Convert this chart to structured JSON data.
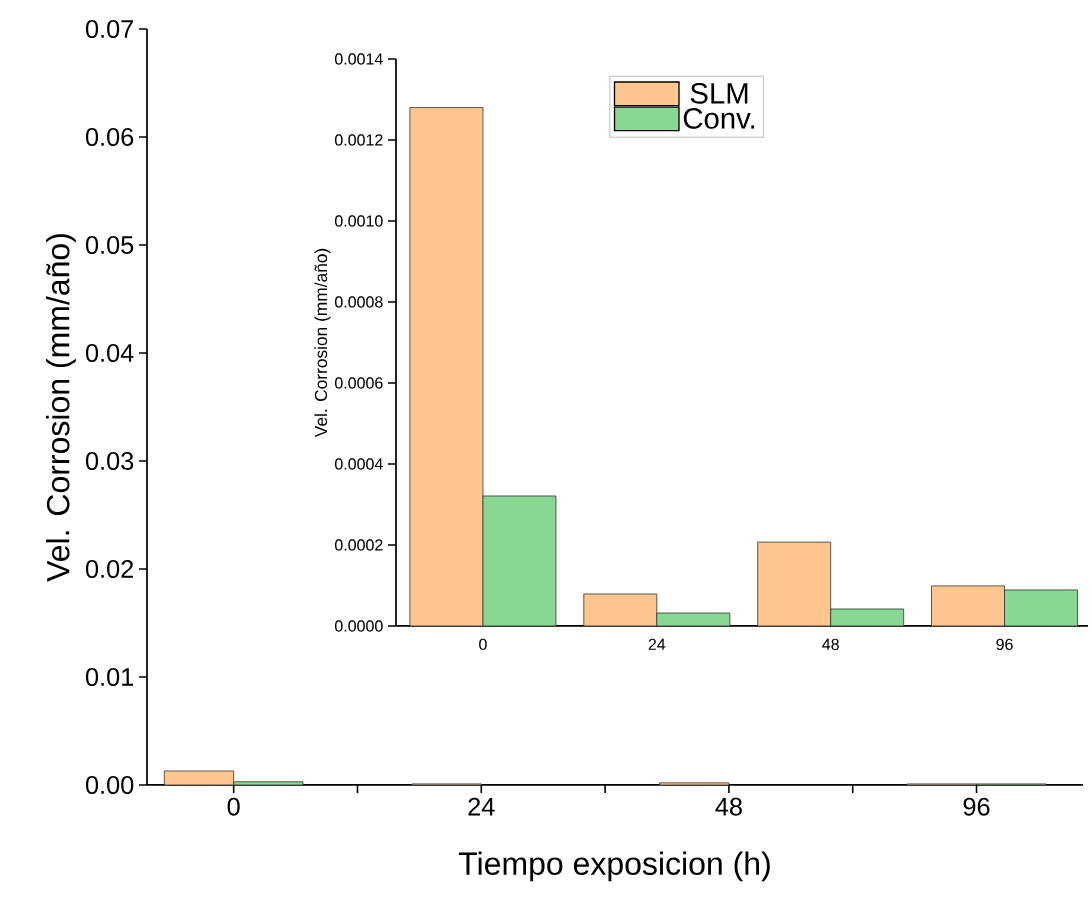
{
  "chart_data": [
    {
      "type": "bar",
      "categories": [
        "0",
        "24",
        "48",
        "96"
      ],
      "xlabel": "Tiempo exposicion (h)",
      "ylabel": "Vel. Corrosion (mm/año)",
      "series": [
        {
          "color": "#fec68e",
          "values": [
            0.0013,
            0.0001,
            0.0002,
            0.0001
          ]
        },
        {
          "color": "#88d894",
          "values": [
            0.0003,
            null,
            null,
            0.0001
          ]
        }
      ],
      "ylim": [
        0,
        0.07
      ],
      "yticks": [
        {
          "value": 0,
          "label": "0.00"
        },
        {
          "value": 0.01,
          "label": "0.01"
        },
        {
          "value": 0.02,
          "label": "0.02"
        },
        {
          "value": 0.03,
          "label": "0.03"
        },
        {
          "value": 0.04,
          "label": "0.04"
        },
        {
          "value": 0.05,
          "label": "0.05"
        },
        {
          "value": 0.06,
          "label": "0.06"
        },
        {
          "value": 0.07,
          "label": "0.07"
        }
      ],
      "grid": false,
      "legend": false
    },
    {
      "type": "bar",
      "categories": [
        "0",
        "24",
        "48",
        "96"
      ],
      "ylabel": "Vel. Corrosion (mm/año)",
      "series": [
        {
          "name": "SLM",
          "color": "#fec68e",
          "values": [
            0.00128,
            7.9e-05,
            0.000207,
            9.9e-05
          ]
        },
        {
          "name": "Conv.",
          "color": "#88d894",
          "values": [
            0.000321,
            3.2e-05,
            4.2e-05,
            8.9e-05
          ]
        }
      ],
      "ylim": [
        0,
        0.0014
      ],
      "yticks": [
        {
          "value": 0,
          "label": "0.0000"
        },
        {
          "value": 0.0002,
          "label": "0.0002"
        },
        {
          "value": 0.0004,
          "label": "0.0004"
        },
        {
          "value": 0.0006,
          "label": "0.0006"
        },
        {
          "value": 0.0008,
          "label": "0.0008"
        },
        {
          "value": 0.001,
          "label": "0.0010"
        },
        {
          "value": 0.0012,
          "label": "0.0012"
        },
        {
          "value": 0.0014,
          "label": "0.0014"
        }
      ],
      "grid": false,
      "legend": "top"
    }
  ]
}
